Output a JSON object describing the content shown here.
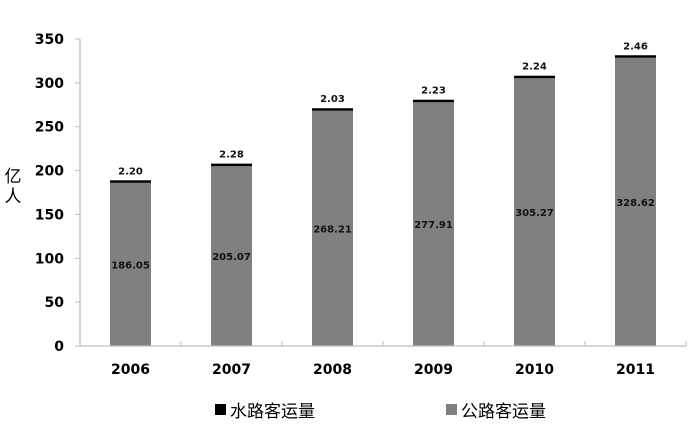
{
  "chart_data": {
    "type": "bar",
    "stacked": true,
    "title": "",
    "xlabel": "",
    "ylabel": "亿人",
    "ylim": [
      0,
      350
    ],
    "yticks": [
      0,
      50,
      100,
      150,
      200,
      250,
      300,
      350
    ],
    "grid": false,
    "legend_position": "bottom",
    "categories": [
      "2006",
      "2007",
      "2008",
      "2009",
      "2010",
      "2011"
    ],
    "series": [
      {
        "name": "公路客运量",
        "color": "#808080",
        "values": [
          186.05,
          205.07,
          268.21,
          277.91,
          305.27,
          328.62
        ],
        "labels": [
          "186.05",
          "205.07",
          "268.21",
          "277.91",
          "305.27",
          "328.62"
        ]
      },
      {
        "name": "水路客运量",
        "color": "#000000",
        "values": [
          2.2,
          2.28,
          2.03,
          2.23,
          2.24,
          2.46
        ],
        "labels": [
          "2.20",
          "2.28",
          "2.03",
          "2.23",
          "2.24",
          "2.46"
        ]
      }
    ]
  },
  "axis": {
    "ylabel_line1": "亿",
    "ylabel_line2": "人",
    "ytick_labels": [
      "0",
      "50",
      "100",
      "150",
      "200",
      "250",
      "300",
      "350"
    ]
  },
  "legend": {
    "items": [
      {
        "label": "水路客运量",
        "color": "#000000"
      },
      {
        "label": "公路客运量",
        "color": "#808080"
      }
    ]
  },
  "colors": {
    "axis": "#bfbfbf",
    "highway": "#808080",
    "waterway": "#000000"
  }
}
